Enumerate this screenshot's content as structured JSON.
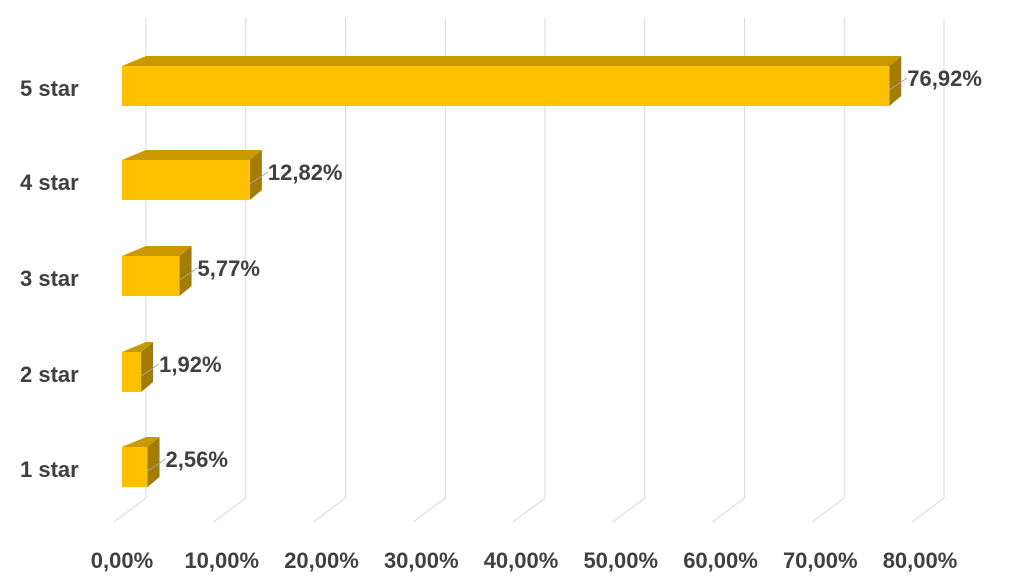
{
  "chart_data": {
    "type": "bar",
    "orientation": "horizontal",
    "style": "3d",
    "categories": [
      "5 star",
      "4 star",
      "3 star",
      "2 star",
      "1 star"
    ],
    "values": [
      76.92,
      12.82,
      5.77,
      1.92,
      2.56
    ],
    "data_labels": [
      "76,92%",
      "12,82%",
      "5,77%",
      "1,92%",
      "2,56%"
    ],
    "x_ticks": [
      "0,00%",
      "10,00%",
      "20,00%",
      "30,00%",
      "40,00%",
      "50,00%",
      "60,00%",
      "70,00%",
      "80,00%"
    ],
    "xlim": [
      0,
      80
    ],
    "grid": true,
    "legend": "none",
    "colors": {
      "bar_front": "#FFC000",
      "bar_top": "#C99A00",
      "bar_side": "#A37C00",
      "grid": "#D9D9D9",
      "text": "#404040"
    }
  }
}
